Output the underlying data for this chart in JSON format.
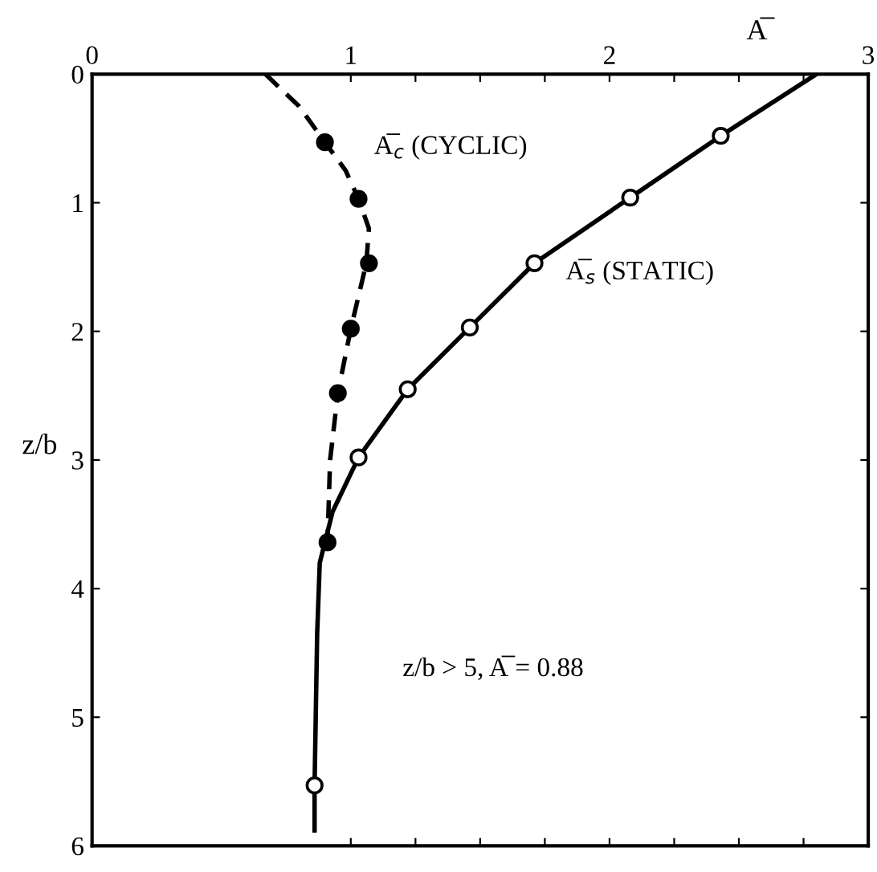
{
  "chart_data": {
    "type": "line",
    "xlabel": "A̅",
    "ylabel": "z/b",
    "xlim": [
      0,
      3
    ],
    "xticks": [
      0,
      1,
      2,
      3,
      {
        "value": 1.25,
        "label": null
      },
      {
        "value": 1.5,
        "label": null
      },
      {
        "value": 1.75,
        "label": null
      },
      {
        "value": 2.25,
        "label": null
      },
      {
        "value": 2.5,
        "label": null
      },
      {
        "value": 2.75,
        "label": null
      }
    ],
    "ylim": [
      6,
      0
    ],
    "yticks": [
      0,
      1,
      2,
      3,
      4,
      5,
      6
    ],
    "grid": false,
    "legend": false,
    "series": [
      {
        "name": "A̅$_{c}$ (CYCLIC)",
        "color": "#000000",
        "line_style": "dashed",
        "marker": "none",
        "x": [
          0.67,
          0.8,
          0.9,
          0.98,
          1.03,
          1.07,
          1.06,
          1.0,
          0.95,
          0.92,
          0.91
        ],
        "values": [
          0,
          0.25,
          0.53,
          0.75,
          0.97,
          1.2,
          1.47,
          1.98,
          2.48,
          3.0,
          3.64
        ]
      },
      {
        "name": "A̅$_{s}$ (STATIC)",
        "color": "#000000",
        "line_style": "solid",
        "marker": "none",
        "x": [
          2.8,
          2.43,
          2.08,
          1.71,
          1.46,
          1.22,
          1.03,
          0.93,
          0.88,
          0.87,
          0.86,
          0.86
        ],
        "values": [
          0,
          0.48,
          0.96,
          1.47,
          1.97,
          2.45,
          2.98,
          3.4,
          3.8,
          4.35,
          5.53,
          5.88
        ]
      },
      {
        "type": "scatter",
        "color": "#000000",
        "marker": "circle",
        "x": [
          0.9,
          1.03,
          1.07,
          1.0,
          0.95,
          0.91
        ],
        "values": [
          0.53,
          0.97,
          1.47,
          1.98,
          2.48,
          3.64
        ]
      },
      {
        "type": "scatter",
        "color": "#ffffff",
        "marker": "circle",
        "x": [
          2.43,
          2.08,
          1.71,
          1.46,
          1.22,
          1.03,
          0.86
        ],
        "values": [
          0.48,
          0.96,
          1.47,
          1.97,
          2.45,
          2.98,
          5.53
        ]
      }
    ],
    "annotations": [
      "z/b > 5, A̅ = 0.88"
    ]
  }
}
